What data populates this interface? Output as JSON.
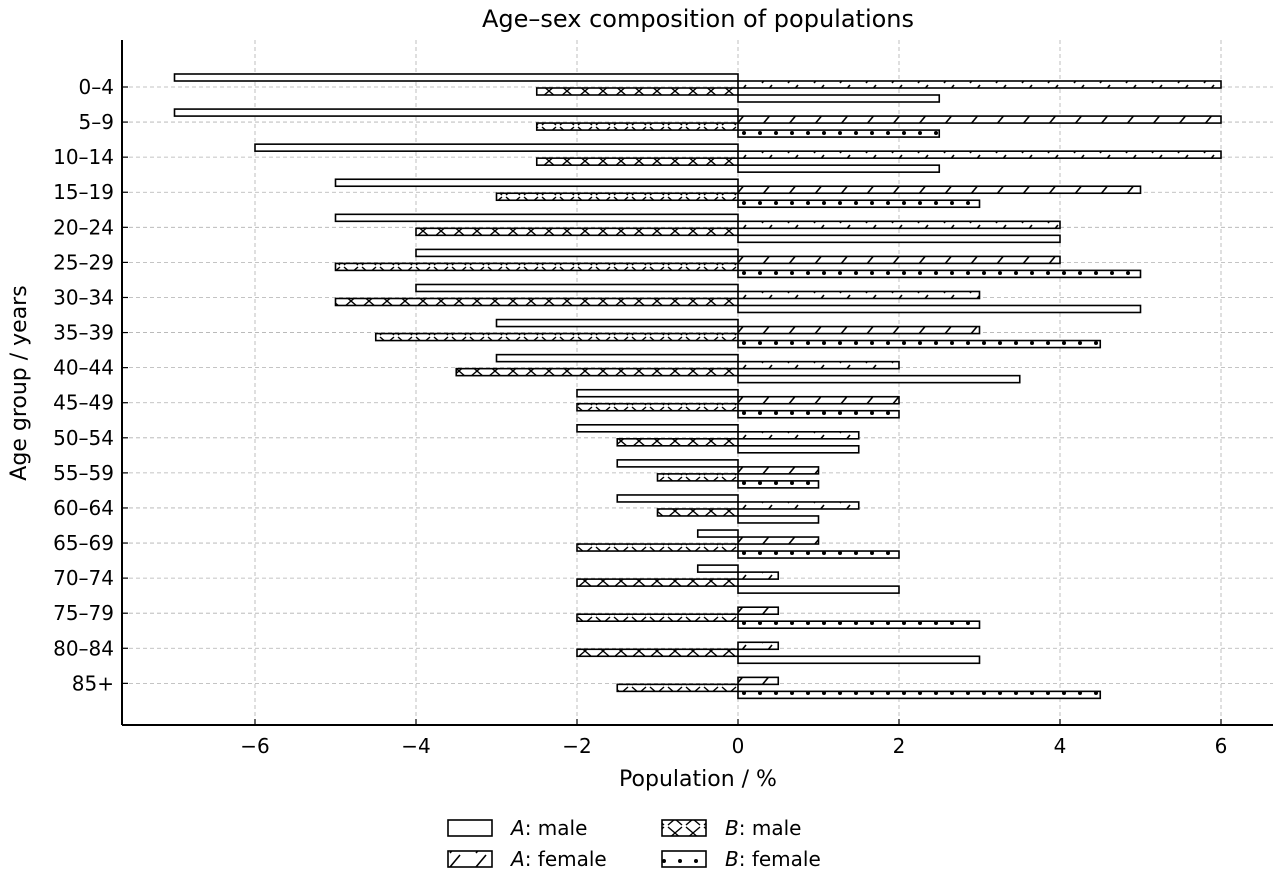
{
  "chart_data": {
    "type": "bar",
    "orientation": "horizontal",
    "title": "Age–sex composition of populations",
    "xlabel": "Population / %",
    "ylabel": "Age group / years",
    "xlim": [
      -7.6,
      6.65
    ],
    "xticks": [
      -6,
      -4,
      -2,
      0,
      2,
      4,
      6
    ],
    "xtick_labels": [
      "−6",
      "−4",
      "−2",
      "0",
      "2",
      "4",
      "6"
    ],
    "grid": true,
    "legend_position": "bottom-center",
    "categories": [
      "0–4",
      "5–9",
      "10–14",
      "15–19",
      "20–24",
      "25–29",
      "30–34",
      "35–39",
      "40–44",
      "45–49",
      "50–54",
      "55–59",
      "60–64",
      "65–69",
      "70–74",
      "75–79",
      "80–84",
      "85+"
    ],
    "series": [
      {
        "name": "A: male",
        "prefix": "A",
        "suffix": ": male",
        "pattern": "none",
        "values": [
          -7,
          -7,
          -6,
          -5,
          -5,
          -4,
          -4,
          -3,
          -3,
          -2,
          -2,
          -1.5,
          -1.5,
          -0.5,
          -0.5,
          0,
          0,
          0
        ]
      },
      {
        "name": "A: female",
        "prefix": "A",
        "suffix": ": female",
        "pattern": "hatch",
        "values": [
          6,
          6,
          6,
          5,
          4,
          4,
          3,
          3,
          2,
          2,
          1.5,
          1,
          1.5,
          1,
          0.5,
          0.5,
          0.5,
          0.5
        ]
      },
      {
        "name": "B: male",
        "prefix": "B",
        "suffix": ": male",
        "pattern": "cross",
        "values": [
          -2.5,
          -2.5,
          -2.5,
          -3,
          -4,
          -5,
          -5,
          -4.5,
          -3.5,
          -2,
          -1.5,
          -1,
          -1,
          -2,
          -2,
          -2,
          -2,
          -1.5
        ]
      },
      {
        "name": "B: female",
        "prefix": "B",
        "suffix": ": female",
        "pattern": "dots",
        "values": [
          2.5,
          2.5,
          2.5,
          3,
          4,
          5,
          5,
          4.5,
          3.5,
          2,
          1.5,
          1,
          1,
          2,
          2,
          3,
          3,
          4.5
        ]
      }
    ]
  }
}
